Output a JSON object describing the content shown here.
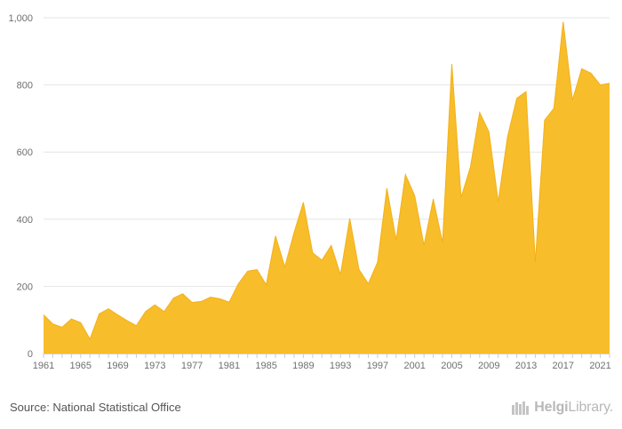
{
  "chart_data": {
    "type": "area",
    "x": [
      1961,
      1962,
      1963,
      1964,
      1965,
      1966,
      1967,
      1968,
      1969,
      1970,
      1971,
      1972,
      1973,
      1974,
      1975,
      1976,
      1977,
      1978,
      1979,
      1980,
      1981,
      1982,
      1983,
      1984,
      1985,
      1986,
      1987,
      1988,
      1989,
      1990,
      1991,
      1992,
      1993,
      1994,
      1995,
      1996,
      1997,
      1998,
      1999,
      2000,
      2001,
      2002,
      2003,
      2004,
      2005,
      2006,
      2007,
      2008,
      2009,
      2010,
      2011,
      2012,
      2013,
      2014,
      2015,
      2016,
      2017,
      2018,
      2019,
      2020,
      2021,
      2022
    ],
    "values": [
      115,
      88,
      78,
      103,
      92,
      43,
      118,
      133,
      115,
      98,
      83,
      125,
      145,
      125,
      165,
      178,
      152,
      155,
      168,
      163,
      153,
      208,
      245,
      250,
      205,
      350,
      258,
      360,
      450,
      300,
      278,
      322,
      235,
      402,
      250,
      208,
      272,
      492,
      338,
      533,
      470,
      322,
      460,
      330,
      862,
      465,
      555,
      718,
      660,
      452,
      645,
      760,
      780,
      272,
      695,
      730,
      988,
      755,
      848,
      835,
      800,
      805
    ],
    "x_ticks": [
      "1961",
      "1965",
      "1969",
      "1973",
      "1977",
      "1981",
      "1985",
      "1989",
      "1993",
      "1997",
      "2001",
      "2005",
      "2009",
      "2013",
      "2017",
      "2021"
    ],
    "y_ticks": [
      "0",
      "200",
      "400",
      "600",
      "800",
      "1,000"
    ],
    "ylim": [
      0,
      1000
    ],
    "grid": true,
    "fill_color": "#f8bd2a",
    "line_color": "#f2b11a"
  },
  "footer": {
    "source": "Source: National Statistical Office",
    "logo_text_bold": "Helgi",
    "logo_text_rest": "Library."
  }
}
